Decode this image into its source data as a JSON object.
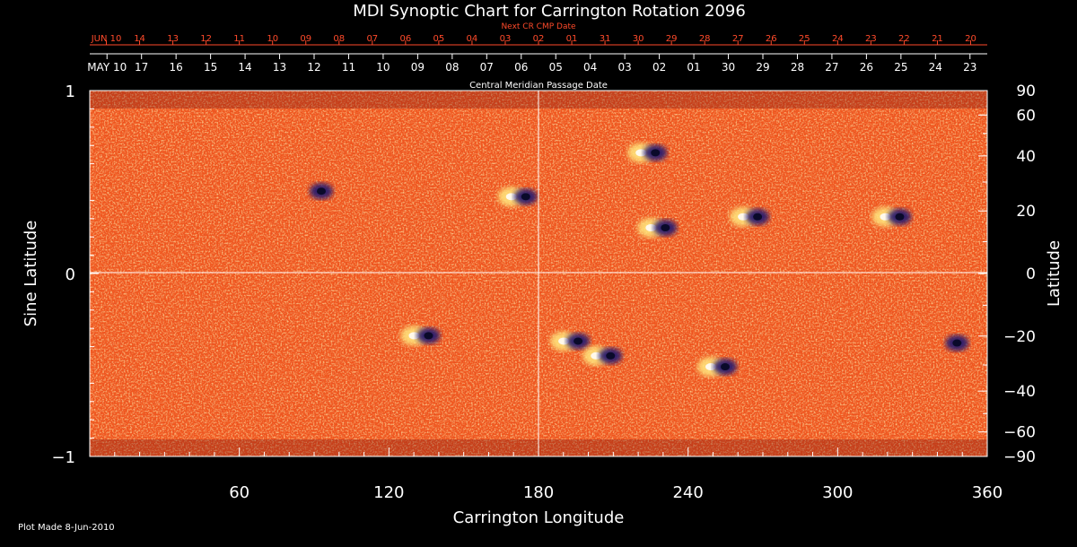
{
  "chart_data": {
    "type": "heatmap",
    "title": "MDI Synoptic Chart for Carrington Rotation 2096",
    "xlabel": "Carrington Longitude",
    "ylabel_left": "Sine Latitude",
    "ylabel_right": "Latitude",
    "xlim": [
      0,
      360
    ],
    "ylim": [
      -1,
      1
    ],
    "x_ticks": [
      "60",
      "120",
      "180",
      "240",
      "300",
      "360"
    ],
    "y_ticks_left": [
      "1",
      "0",
      "−1"
    ],
    "y_ticks_right": [
      "90",
      "60",
      "40",
      "20",
      "0",
      "−20",
      "−40",
      "−60",
      "−90"
    ],
    "y_ticks_right_values": [
      90,
      60,
      40,
      20,
      0,
      -20,
      -40,
      -60,
      -90
    ],
    "top_axis_red": {
      "label": "Next CR CMP Date",
      "dates": [
        "JUN 10",
        "14",
        "13",
        "12",
        "11",
        "10",
        "09",
        "08",
        "07",
        "06",
        "05",
        "04",
        "03",
        "02",
        "01",
        "31",
        "30",
        "29",
        "28",
        "27",
        "26",
        "25",
        "24",
        "23",
        "22",
        "21",
        "20"
      ]
    },
    "top_axis_white": {
      "label": "Central Meridian Passage Date",
      "dates": [
        "MAY 10",
        "17",
        "16",
        "15",
        "14",
        "13",
        "12",
        "11",
        "10",
        "09",
        "08",
        "07",
        "06",
        "05",
        "04",
        "03",
        "02",
        "01",
        "30",
        "29",
        "28",
        "27",
        "26",
        "25",
        "24",
        "23"
      ]
    },
    "reference_lines": {
      "x": 180,
      "y": 0
    },
    "active_regions": [
      {
        "lon": 90,
        "sinlat": 0.45,
        "polarity": "negative"
      },
      {
        "lon": 172,
        "sinlat": 0.42,
        "polarity": "mixed"
      },
      {
        "lon": 224,
        "sinlat": 0.66,
        "polarity": "mixed"
      },
      {
        "lon": 228,
        "sinlat": 0.25,
        "polarity": "mixed"
      },
      {
        "lon": 265,
        "sinlat": 0.31,
        "polarity": "mixed"
      },
      {
        "lon": 322,
        "sinlat": 0.31,
        "polarity": "mixed"
      },
      {
        "lon": 133,
        "sinlat": -0.34,
        "polarity": "mixed"
      },
      {
        "lon": 193,
        "sinlat": -0.37,
        "polarity": "mixed"
      },
      {
        "lon": 206,
        "sinlat": -0.45,
        "polarity": "mixed"
      },
      {
        "lon": 252,
        "sinlat": -0.51,
        "polarity": "mixed"
      },
      {
        "lon": 345,
        "sinlat": -0.38,
        "polarity": "negative"
      }
    ],
    "colors": {
      "background": "#000000",
      "field_base": "#f0561e",
      "positive": "#ffe27a",
      "negative": "#2b1d6e",
      "axis": "#ffffff",
      "red_axis": "#ff4a2a"
    }
  },
  "footer": {
    "plot_made": "Plot Made  8-Jun-2010"
  }
}
